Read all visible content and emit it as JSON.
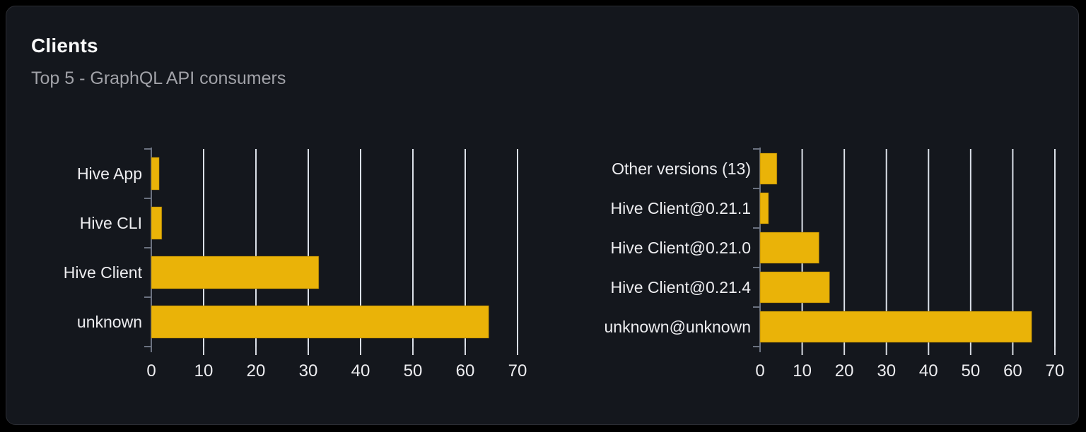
{
  "card": {
    "title": "Clients",
    "subtitle": "Top 5 - GraphQL API consumers"
  },
  "colors": {
    "page_bg": "#000000",
    "card_bg": "#14171d",
    "card_border": "#2b2d33",
    "title_text": "#fafafa",
    "subtitle_text": "#a1a2a8",
    "bar": "#eab308",
    "bar_edge": "#8a6400",
    "gridline": "#dbe0e8",
    "axis_domain": "#6b7280",
    "x_tick": "#d6d9e0",
    "label_text": "#ededf0"
  },
  "chart_data": [
    {
      "type": "bar",
      "orientation": "horizontal",
      "title": "",
      "xlabel": "",
      "ylabel": "",
      "categories": [
        "Hive App",
        "Hive CLI",
        "Hive Client",
        "unknown"
      ],
      "values": [
        1.5,
        2,
        32,
        64.5
      ],
      "xlim": [
        0,
        70
      ],
      "xticks": [
        0,
        10,
        20,
        30,
        40,
        50,
        60,
        70
      ],
      "grid": true,
      "legend": "none"
    },
    {
      "type": "bar",
      "orientation": "horizontal",
      "title": "",
      "xlabel": "",
      "ylabel": "",
      "categories": [
        "Other versions (13)",
        "Hive Client@0.21.1",
        "Hive Client@0.21.0",
        "Hive Client@0.21.4",
        "unknown@unknown"
      ],
      "values": [
        4,
        2,
        14,
        16.5,
        64.5
      ],
      "xlim": [
        0,
        70
      ],
      "xticks": [
        0,
        10,
        20,
        30,
        40,
        50,
        60,
        70
      ],
      "grid": true,
      "legend": "none"
    }
  ]
}
